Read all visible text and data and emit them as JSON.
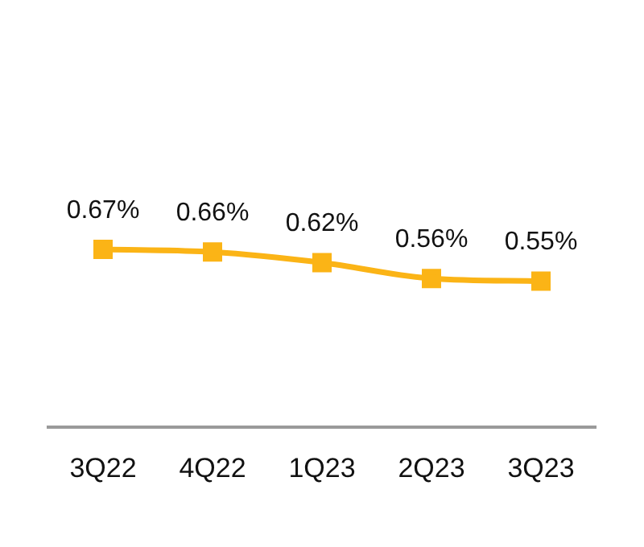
{
  "chart_data": {
    "type": "line",
    "categories": [
      "3Q22",
      "4Q22",
      "1Q23",
      "2Q23",
      "3Q23"
    ],
    "series": [
      {
        "color": "#fbb416",
        "values": [
          0.67,
          0.66,
          0.62,
          0.56,
          0.55
        ],
        "value_labels": [
          "0.67%",
          "0.66%",
          "0.62%",
          "0.56%",
          "0.55%"
        ]
      }
    ],
    "tick_labels": "x",
    "grid": false,
    "legend": false,
    "marker": "square",
    "line_style": "solid"
  }
}
